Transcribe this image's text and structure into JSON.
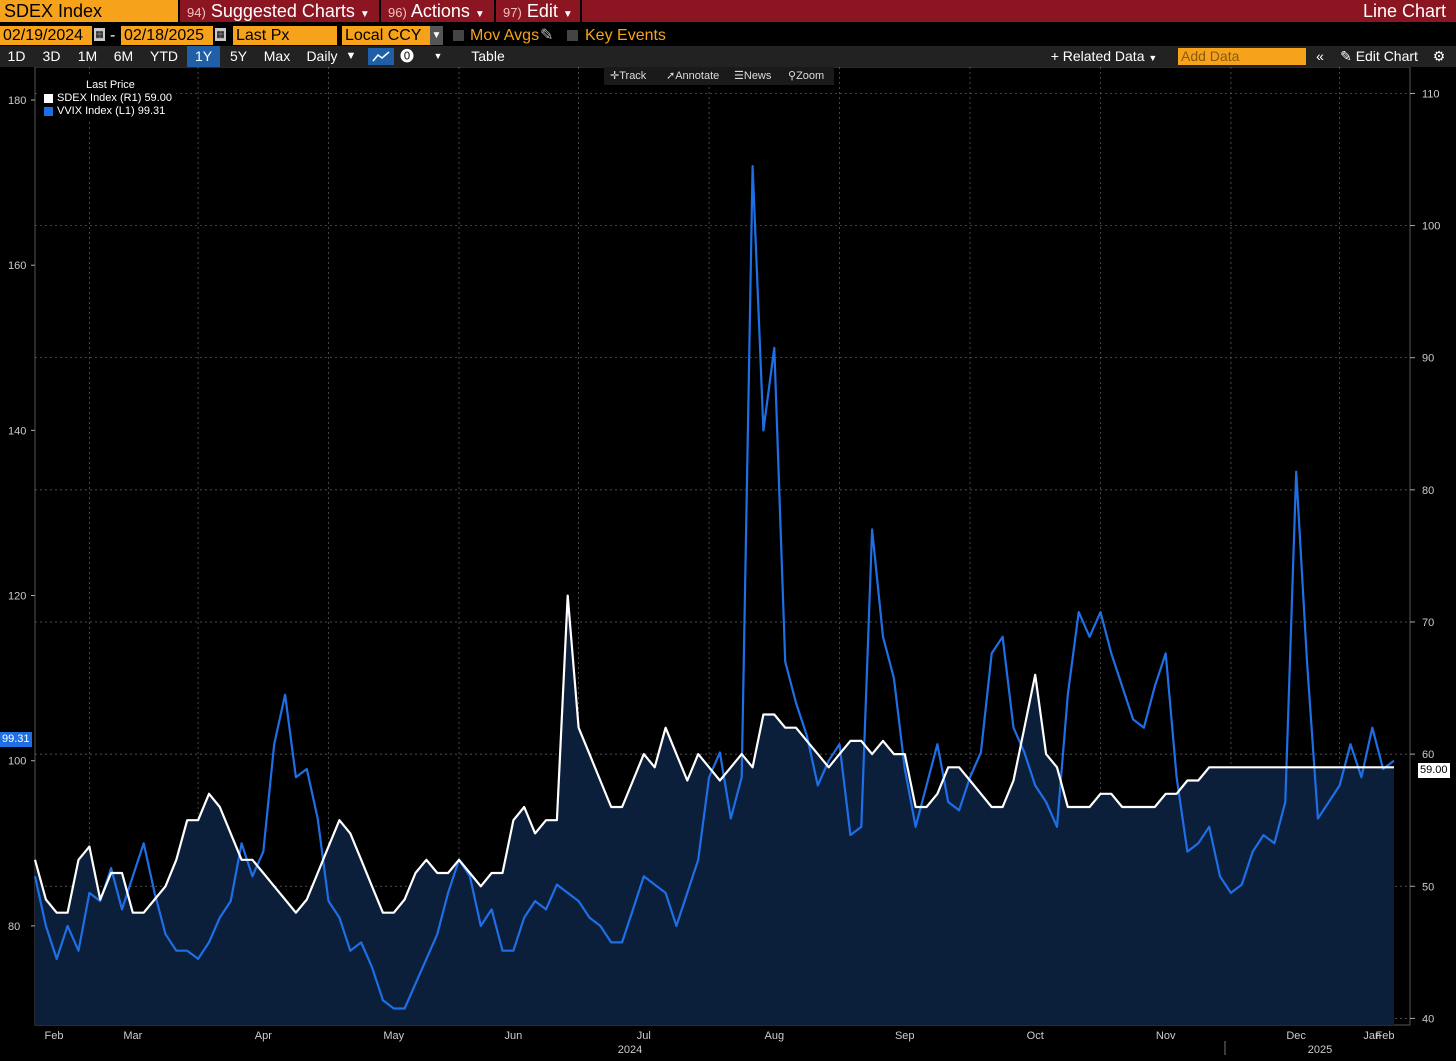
{
  "header": {
    "ticker": "SDEX Index",
    "menu": [
      {
        "num": "94)",
        "label": "Suggested Charts"
      },
      {
        "num": "96)",
        "label": "Actions"
      },
      {
        "num": "97)",
        "label": "Edit"
      }
    ],
    "chart_type": "Line Chart"
  },
  "controls": {
    "start_date": "02/19/2024",
    "end_date": "02/18/2025",
    "date_sep": "-",
    "price_field": "Last Px",
    "currency": "Local CCY",
    "mov_avgs": "Mov Avgs",
    "key_events": "Key Events",
    "ranges": [
      "1D",
      "3D",
      "1M",
      "6M",
      "YTD",
      "1Y",
      "5Y",
      "Max"
    ],
    "active_range": "1Y",
    "frequency": "Daily",
    "table": "Table",
    "related_data": "Related Data",
    "add_data_placeholder": "Add Data",
    "edit_chart": "Edit Chart"
  },
  "toolstrip": {
    "track": "Track",
    "annotate": "Annotate",
    "news": "News",
    "zoom": "Zoom"
  },
  "legend": {
    "title": "Last Price",
    "items": [
      {
        "label": "SDEX Index  (R1)",
        "value": "59.00",
        "color": "#ffffff"
      },
      {
        "label": "VVIX Index  (L1)",
        "value": "99.31",
        "color": "#1e6fe6"
      }
    ]
  },
  "chart_data": {
    "type": "line",
    "x_axis": {
      "months": [
        "Feb",
        "Mar",
        "Apr",
        "May",
        "Jun",
        "Jul",
        "Aug",
        "Sep",
        "Oct",
        "Nov",
        "Dec",
        "Jan",
        "Feb"
      ],
      "year_labels": [
        "2024",
        "2025"
      ]
    },
    "left_axis": {
      "ticks": [
        "80",
        "100",
        "120",
        "140",
        "160",
        "180"
      ],
      "range": [
        68,
        184
      ]
    },
    "right_axis": {
      "ticks": [
        "40",
        "50",
        "60",
        "70",
        "80",
        "90",
        "100",
        "110"
      ],
      "range": [
        39.5,
        112
      ]
    },
    "last_value_tags": {
      "left": "99.31",
      "right": "59.00"
    },
    "grid": true,
    "series": [
      {
        "name": "VVIX Index",
        "axis": "left",
        "color": "#1e6fe6",
        "x": [
          0,
          2,
          4,
          6,
          8,
          10,
          12,
          14,
          16,
          18,
          20,
          22,
          24,
          26,
          28,
          30,
          32,
          34,
          36,
          38,
          40,
          42,
          44,
          46,
          48,
          50,
          52,
          54,
          56,
          58,
          60,
          62,
          64,
          66,
          68,
          70,
          72,
          74,
          76,
          78,
          80,
          82,
          84,
          86,
          88,
          90,
          92,
          94,
          96,
          98,
          100,
          102,
          104,
          106,
          108,
          110,
          112,
          114,
          116,
          118,
          120,
          122,
          124,
          126,
          128,
          130,
          132,
          134,
          136,
          138,
          140,
          142,
          144,
          146,
          148,
          150,
          152,
          154,
          156,
          158,
          160,
          162,
          164,
          166,
          168,
          170,
          172,
          174,
          176,
          178,
          180,
          182,
          184,
          186,
          188,
          190,
          192,
          194,
          196,
          198,
          200,
          202,
          204,
          206,
          208,
          210,
          212,
          214,
          216,
          218,
          220,
          222,
          224,
          226,
          228,
          230,
          232,
          234,
          236,
          238,
          240,
          242,
          244,
          246,
          248,
          250
        ],
        "values": [
          86,
          80,
          76,
          80,
          77,
          84,
          83,
          87,
          82,
          86,
          90,
          84,
          79,
          77,
          77,
          76,
          78,
          81,
          83,
          90,
          86,
          89,
          102,
          108,
          98,
          99,
          93,
          83,
          81,
          77,
          78,
          75,
          71,
          70,
          70,
          73,
          76,
          79,
          84,
          88,
          86,
          80,
          82,
          77,
          77,
          81,
          83,
          82,
          85,
          84,
          83,
          81,
          80,
          78,
          78,
          82,
          86,
          85,
          84,
          80,
          84,
          88,
          98,
          101,
          93,
          98,
          172,
          140,
          150,
          112,
          107,
          103,
          97,
          100,
          102,
          91,
          92,
          128,
          115,
          110,
          99,
          92,
          97,
          102,
          95,
          94,
          98,
          101,
          113,
          115,
          104,
          101,
          97,
          95,
          92,
          108,
          118,
          115,
          118,
          113,
          109,
          105,
          104,
          109,
          113,
          98,
          89,
          90,
          92,
          86,
          84,
          85,
          89,
          91,
          90,
          95,
          135,
          112,
          93,
          95,
          97,
          102,
          98,
          104,
          99,
          100
        ]
      },
      {
        "name": "SDEX Index",
        "axis": "right",
        "color": "#ffffff",
        "x": [
          0,
          2,
          4,
          6,
          8,
          10,
          12,
          14,
          16,
          18,
          20,
          22,
          24,
          26,
          28,
          30,
          32,
          34,
          36,
          38,
          40,
          42,
          44,
          46,
          48,
          50,
          52,
          54,
          56,
          58,
          60,
          62,
          64,
          66,
          68,
          70,
          72,
          74,
          76,
          78,
          80,
          82,
          84,
          86,
          88,
          90,
          92,
          94,
          96,
          98,
          100,
          102,
          104,
          106,
          108,
          110,
          112,
          114,
          116,
          118,
          120,
          122,
          124,
          126,
          128,
          130,
          132,
          134,
          136,
          138,
          140,
          142,
          144,
          146,
          148,
          150,
          152,
          154,
          156,
          158,
          160,
          162,
          164,
          166,
          168,
          170,
          172,
          174,
          176,
          178,
          180,
          182,
          184,
          186,
          188,
          190,
          192,
          194,
          196,
          198,
          200,
          202,
          204,
          206,
          208,
          210,
          212,
          214,
          216,
          218,
          220,
          222,
          224,
          226,
          228,
          230,
          232,
          234,
          236,
          238,
          240,
          242,
          244,
          246,
          248,
          250
        ],
        "values": [
          52,
          49,
          48,
          48,
          52,
          53,
          49,
          51,
          51,
          48,
          48,
          49,
          50,
          52,
          55,
          55,
          57,
          56,
          54,
          52,
          52,
          51,
          50,
          49,
          48,
          49,
          51,
          53,
          55,
          54,
          52,
          50,
          48,
          48,
          49,
          51,
          52,
          51,
          51,
          52,
          51,
          50,
          51,
          51,
          55,
          56,
          54,
          55,
          55,
          72,
          62,
          60,
          58,
          56,
          56,
          58,
          60,
          59,
          62,
          60,
          58,
          60,
          59,
          58,
          59,
          60,
          59,
          63,
          63,
          62,
          62,
          61,
          60,
          59,
          60,
          61,
          61,
          60,
          61,
          60,
          60,
          56,
          56,
          57,
          59,
          59,
          58,
          57,
          56,
          56,
          58,
          62,
          66,
          60,
          59,
          56,
          56,
          56,
          57,
          57,
          56,
          56,
          56,
          56,
          57,
          57,
          58,
          58,
          59,
          59,
          59,
          59,
          59,
          59,
          59,
          59,
          59,
          59,
          59,
          59,
          59,
          59,
          59,
          59,
          59,
          59
        ]
      }
    ]
  }
}
